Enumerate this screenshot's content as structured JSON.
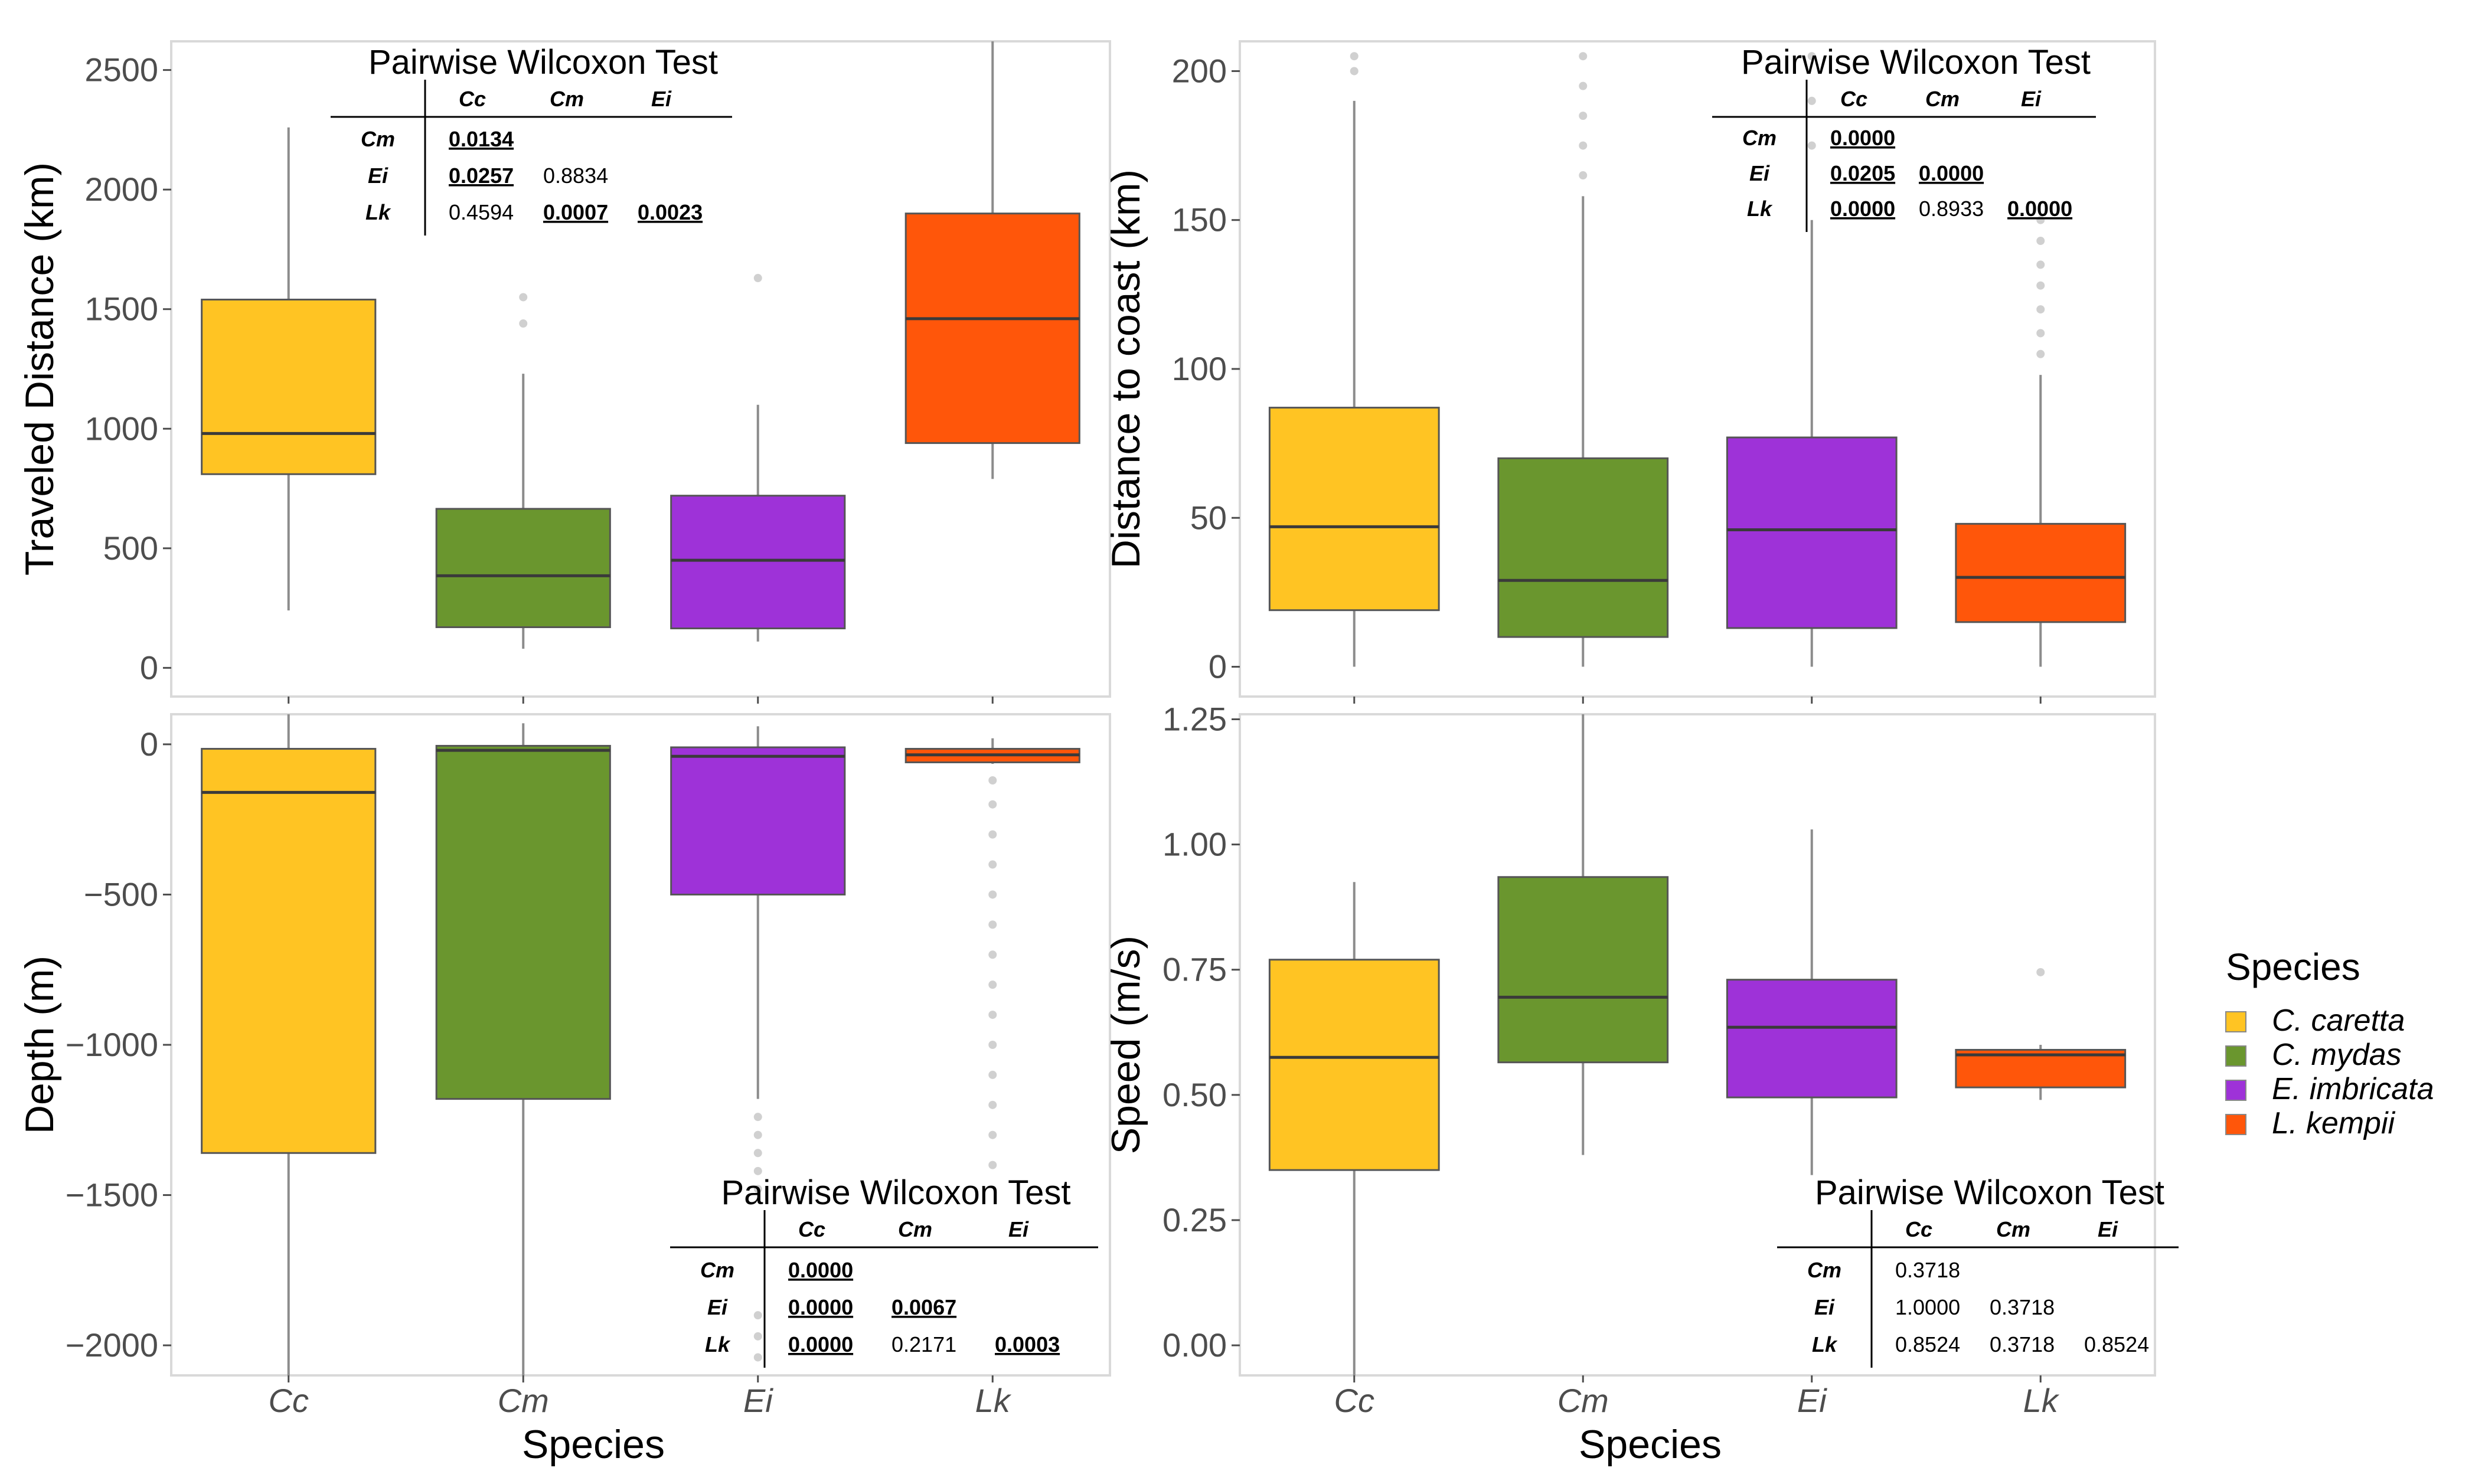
{
  "chart_data": [
    {
      "type": "boxplot",
      "panel": "top-left",
      "xlabel": "",
      "ylabel": "Traveled Distance (km)",
      "categories": [
        "Cc",
        "Cm",
        "Ei",
        "Lk"
      ],
      "ylim": [
        -120,
        2620
      ],
      "yticks": [
        0,
        500,
        1000,
        1500,
        2000,
        2500
      ],
      "ytick_labels": [
        "0",
        "500",
        "1000",
        "1500",
        "2000",
        "2500"
      ],
      "boxes": [
        {
          "category": "Cc",
          "whisker_low": 240,
          "q1": 810,
          "median": 980,
          "q3": 1540,
          "whisker_high": 2260,
          "outliers": []
        },
        {
          "category": "Cm",
          "whisker_low": 80,
          "q1": 170,
          "median": 385,
          "q3": 665,
          "whisker_high": 1230,
          "outliers": [
            1440,
            1550
          ]
        },
        {
          "category": "Ei",
          "whisker_low": 110,
          "q1": 165,
          "median": 450,
          "q3": 720,
          "whisker_high": 1100,
          "outliers": [
            1630
          ]
        },
        {
          "category": "Lk",
          "whisker_low": 790,
          "q1": 940,
          "median": 1460,
          "q3": 1900,
          "whisker_high": 2620,
          "outliers": []
        }
      ],
      "wilcoxon": {
        "title": "Pairwise Wilcoxon Test",
        "columns": [
          "Cc",
          "Cm",
          "Ei"
        ],
        "rows": [
          {
            "name": "Cm",
            "values": [
              "0.0134",
              "",
              ""
            ],
            "significant": [
              true,
              false,
              false
            ]
          },
          {
            "name": "Ei",
            "values": [
              "0.0257",
              "0.8834",
              ""
            ],
            "significant": [
              true,
              false,
              false
            ]
          },
          {
            "name": "Lk",
            "values": [
              "0.4594",
              "0.0007",
              "0.0023"
            ],
            "significant": [
              false,
              true,
              true
            ]
          }
        ]
      }
    },
    {
      "type": "boxplot",
      "panel": "top-right",
      "xlabel": "",
      "ylabel": "Distance to coast (km)",
      "categories": [
        "Cc",
        "Cm",
        "Ei",
        "Lk"
      ],
      "ylim": [
        -10,
        210
      ],
      "yticks": [
        0,
        50,
        100,
        150,
        200
      ],
      "ytick_labels": [
        "0",
        "50",
        "100",
        "150",
        "200"
      ],
      "boxes": [
        {
          "category": "Cc",
          "whisker_low": 0,
          "q1": 19,
          "median": 47,
          "q3": 87,
          "whisker_high": 190,
          "outliers": [
            200,
            205
          ]
        },
        {
          "category": "Cm",
          "whisker_low": 0,
          "q1": 10,
          "median": 29,
          "q3": 70,
          "whisker_high": 158,
          "outliers": [
            165,
            175,
            185,
            195,
            205
          ]
        },
        {
          "category": "Ei",
          "whisker_low": 0,
          "q1": 13,
          "median": 46,
          "q3": 77,
          "whisker_high": 150,
          "outliers": [
            175,
            190,
            205
          ]
        },
        {
          "category": "Lk",
          "whisker_low": 0,
          "q1": 15,
          "median": 30,
          "q3": 48,
          "whisker_high": 98,
          "outliers": [
            105,
            112,
            120,
            128,
            135,
            143,
            150
          ]
        }
      ],
      "wilcoxon": {
        "title": "Pairwise Wilcoxon Test",
        "columns": [
          "Cc",
          "Cm",
          "Ei"
        ],
        "rows": [
          {
            "name": "Cm",
            "values": [
              "0.0000",
              "",
              ""
            ],
            "significant": [
              true,
              false,
              false
            ]
          },
          {
            "name": "Ei",
            "values": [
              "0.0205",
              "0.0000",
              ""
            ],
            "significant": [
              true,
              true,
              false
            ]
          },
          {
            "name": "Lk",
            "values": [
              "0.0000",
              "0.8933",
              "0.0000"
            ],
            "significant": [
              true,
              false,
              true
            ]
          }
        ]
      }
    },
    {
      "type": "boxplot",
      "panel": "bottom-left",
      "xlabel": "Species",
      "ylabel": "Depth (m)",
      "categories": [
        "Cc",
        "Cm",
        "Ei",
        "Lk"
      ],
      "ylim": [
        -2100,
        100
      ],
      "yticks": [
        0,
        -500,
        -1000,
        -1500,
        -2000
      ],
      "ytick_labels": [
        "0",
        "−500",
        "−1000",
        "−1500",
        "−2000"
      ],
      "boxes": [
        {
          "category": "Cc",
          "whisker_low": -2100,
          "q1": -1360,
          "median": -160,
          "q3": -15,
          "whisker_high": 100,
          "outliers": []
        },
        {
          "category": "Cm",
          "whisker_low": -2100,
          "q1": -1180,
          "median": -20,
          "q3": -5,
          "whisker_high": 70,
          "outliers": []
        },
        {
          "category": "Ei",
          "whisker_low": -1180,
          "q1": -500,
          "median": -40,
          "q3": -10,
          "whisker_high": 60,
          "outliers": [
            -1240,
            -1300,
            -1360,
            -1420,
            -1480,
            -1900,
            -1970,
            -2040
          ]
        },
        {
          "category": "Lk",
          "whisker_low": -65,
          "q1": -60,
          "median": -35,
          "q3": -15,
          "whisker_high": 20,
          "outliers": [
            -120,
            -200,
            -300,
            -400,
            -500,
            -600,
            -700,
            -800,
            -900,
            -1000,
            -1100,
            -1200,
            -1300,
            -1400
          ]
        }
      ],
      "wilcoxon": {
        "title": "Pairwise Wilcoxon Test",
        "columns": [
          "Cc",
          "Cm",
          "Ei"
        ],
        "rows": [
          {
            "name": "Cm",
            "values": [
              "0.0000",
              "",
              ""
            ],
            "significant": [
              true,
              false,
              false
            ]
          },
          {
            "name": "Ei",
            "values": [
              "0.0000",
              "0.0067",
              ""
            ],
            "significant": [
              true,
              true,
              false
            ]
          },
          {
            "name": "Lk",
            "values": [
              "0.0000",
              "0.2171",
              "0.0003"
            ],
            "significant": [
              true,
              false,
              true
            ]
          }
        ]
      }
    },
    {
      "type": "boxplot",
      "panel": "bottom-right",
      "xlabel": "Species",
      "ylabel": "Speed (m/s)",
      "categories": [
        "Cc",
        "Cm",
        "Ei",
        "Lk"
      ],
      "ylim": [
        -0.06,
        1.26
      ],
      "yticks": [
        0,
        0.25,
        0.5,
        0.75,
        1.0,
        1.25
      ],
      "ytick_labels": [
        "0.00",
        "0.25",
        "0.50",
        "0.75",
        "1.00",
        "1.25"
      ],
      "boxes": [
        {
          "category": "Cc",
          "whisker_low": -0.06,
          "q1": 0.35,
          "median": 0.575,
          "q3": 0.77,
          "whisker_high": 0.925,
          "outliers": []
        },
        {
          "category": "Cm",
          "whisker_low": 0.38,
          "q1": 0.565,
          "median": 0.695,
          "q3": 0.935,
          "whisker_high": 1.26,
          "outliers": []
        },
        {
          "category": "Ei",
          "whisker_low": 0.34,
          "q1": 0.495,
          "median": 0.635,
          "q3": 0.73,
          "whisker_high": 1.03,
          "outliers": []
        },
        {
          "category": "Lk",
          "whisker_low": 0.49,
          "q1": 0.515,
          "median": 0.58,
          "q3": 0.59,
          "whisker_high": 0.6,
          "outliers": [
            0.745
          ]
        }
      ],
      "wilcoxon": {
        "title": "Pairwise Wilcoxon Test",
        "columns": [
          "Cc",
          "Cm",
          "Ei"
        ],
        "rows": [
          {
            "name": "Cm",
            "values": [
              "0.3718",
              "",
              ""
            ],
            "significant": [
              false,
              false,
              false
            ]
          },
          {
            "name": "Ei",
            "values": [
              "1.0000",
              "0.3718",
              ""
            ],
            "significant": [
              false,
              false,
              false
            ]
          },
          {
            "name": "Lk",
            "values": [
              "0.8524",
              "0.3718",
              "0.8524"
            ],
            "significant": [
              false,
              false,
              false
            ]
          }
        ]
      }
    }
  ],
  "legend": {
    "title": "Species",
    "placement": "right",
    "entries": [
      {
        "key": "Cc",
        "label": "C. caretta",
        "color": "#FFC423"
      },
      {
        "key": "Cm",
        "label": "C. mydas",
        "color": "#6A962E"
      },
      {
        "key": "Ei",
        "label": "E. imbricata",
        "color": "#9E32D8"
      },
      {
        "key": "Lk",
        "label": "L. kempii",
        "color": "#FF560A"
      }
    ]
  },
  "colors": {
    "Cc": "#FFC423",
    "Cm": "#6A962E",
    "Ei": "#9E32D8",
    "Lk": "#FF560A",
    "frame": "#d9d9d9",
    "whisker": "#8c8c8c",
    "outlier": "#d0d0d0",
    "median": "#3a3a3a"
  }
}
